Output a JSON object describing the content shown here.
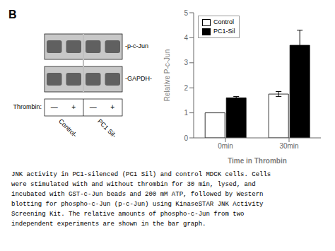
{
  "chart_data": {
    "type": "bar",
    "categories": [
      "0min",
      "30min"
    ],
    "series": [
      {
        "name": "Control",
        "color": "white",
        "values": [
          1.0,
          1.75
        ],
        "errors": [
          0.0,
          0.1
        ]
      },
      {
        "name": "PC1-Sil",
        "color": "black",
        "values": [
          1.6,
          3.7
        ],
        "errors": [
          0.05,
          0.6
        ]
      }
    ],
    "xlabel": "Time in Thrombin",
    "ylabel": "Relative P-c-Jun",
    "ylim": [
      0,
      5
    ],
    "yticks": [
      0,
      1,
      2,
      3,
      4,
      5
    ],
    "grid": false,
    "legend": "upper left",
    "annotations": [
      "B",
      "-p-c-Jun",
      "-GAPDH-",
      "Thrombin:",
      "—",
      "+",
      "—",
      "+",
      "Control-",
      "PC1 Sil-",
      "JNK activity in PC1-silenced (PC1 Sil) and control MDCK cells. Cells\nwere stimulated with and without thrombin for 30 min, lysed, and\nincubated with GST-c-Jun beads and 200 mM ATP, followed by Western\nblotting for phospho-c-Jun (p-c-Jun) using KinaseSTAR JNK Activity\nScreening Kit. The relative amounts of phospho-c-Jun from two\nindependent experiments are shown in the bar graph."
    ]
  }
}
